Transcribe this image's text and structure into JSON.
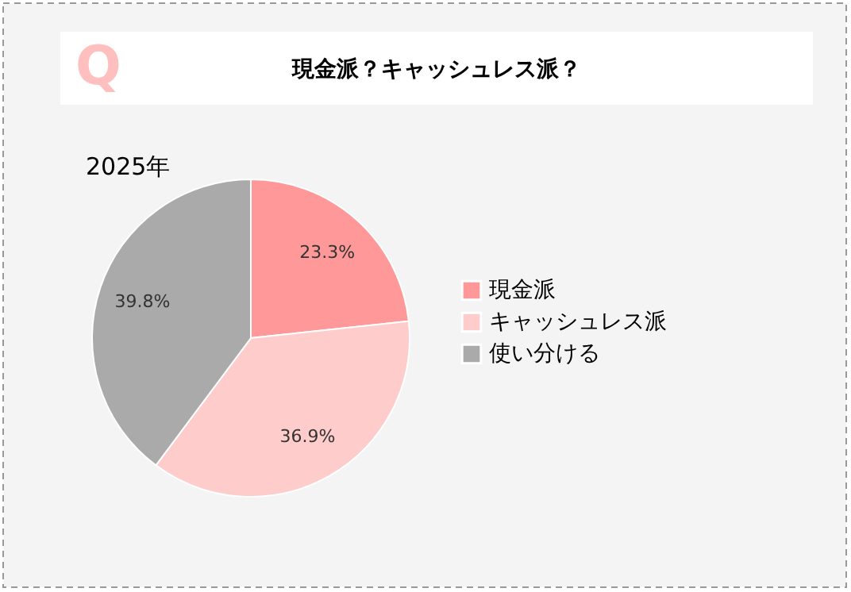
{
  "chart_data": {
    "type": "pie",
    "title": "現金派？キャッシュレス派？",
    "subtitle": "2025年",
    "annotations": [
      "Q"
    ],
    "categories": [
      "現金派",
      "キャッシュレス派",
      "使い分ける"
    ],
    "values": [
      23.3,
      36.9,
      39.8
    ],
    "colors": [
      "#ff9999",
      "#ffcccc",
      "#aaaaaa"
    ],
    "value_labels": [
      "23.3%",
      "36.9%",
      "39.8%"
    ],
    "legend": "right"
  }
}
